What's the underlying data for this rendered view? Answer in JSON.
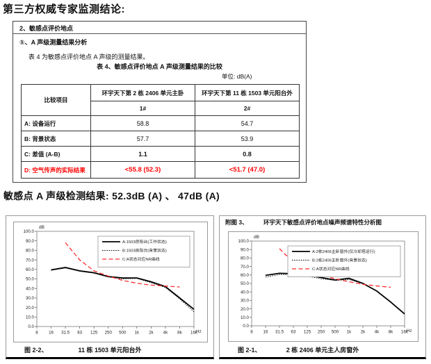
{
  "page": {
    "title": "第三方权威专家监测结论:"
  },
  "report_box": {
    "section": "2、敏感点评价地点",
    "subsection": "①、A 声级测量结果分析",
    "intro": "表 4 为敏感点评价地点 A 声级的测量结果。",
    "table_title": "表 4、敏感点评价地点 A 声级测量结果的比较",
    "unit_label": "单位: dB(A)",
    "table": {
      "corner_header": "比较项目",
      "locations": [
        "环宇天下第 2 栋 2406 单元主卧",
        "环宇天下第 11 栋 1503 单元阳台外"
      ],
      "ids": [
        "1#",
        "2#"
      ],
      "rows": [
        {
          "label": "A: 设备运行",
          "v1": "58.8",
          "v2": "54.7"
        },
        {
          "label": "B: 背景状态",
          "v1": "57.7",
          "v2": "53.9"
        },
        {
          "label": "C: 差值 (A-B)",
          "v1": "1.1",
          "v2": "0.8"
        },
        {
          "label": "D: 空气传声的实际结果",
          "v1": "<55.8 (52.3)",
          "v2": "<51.7 (47.0)"
        }
      ]
    }
  },
  "result_line": "敏感点 A 声级检测结果: 52.3dB (A) 、 47dB (A)",
  "colors": {
    "text_red": "#ff0000",
    "curve_red": "#ff2a2a",
    "line_black": "#000000"
  },
  "chart_data": [
    {
      "type": "line",
      "caption_id": "图 2-2、",
      "caption": "11 栋 1503 单元阳台外",
      "ylabel": "dB",
      "xlabel": "Hz",
      "ylim": [
        0,
        100
      ],
      "ytick_step": 10,
      "grid": false,
      "legend_position": "upper-right",
      "categories": [
        "8",
        "16",
        "31.5",
        "63",
        "125",
        "250",
        "500",
        "1k",
        "2k",
        "4k",
        "8k",
        "16k"
      ],
      "series": [
        {
          "name": "A:1503房阳台(工作状态)",
          "style": "solid",
          "color": "#000000",
          "values": [
            null,
            59.5,
            62,
            58.5,
            56.5,
            52.5,
            51,
            51,
            47,
            42,
            30,
            18
          ]
        },
        {
          "name": "B:1503房阳台(背景状态)",
          "style": "dotted",
          "color": "#000000",
          "values": [
            null,
            59,
            61.5,
            58,
            56,
            52,
            50,
            50.5,
            46,
            41,
            29,
            15.5
          ]
        },
        {
          "name": "C:A状态对应NR曲线",
          "style": "dashed",
          "color": "#ff2a2a",
          "values": [
            null,
            null,
            88,
            70,
            58.5,
            53,
            48.5,
            45.5,
            43.5,
            42.5,
            41.5,
            null
          ]
        }
      ]
    },
    {
      "type": "line",
      "header_id": "附图 3、",
      "header_title": "环宇天下敏感点评价地点噪声频谱特性分析图",
      "caption_id": "图 2-1、",
      "caption": "2 栋 2406 单元主人房窗外",
      "ylabel": "dB",
      "xlabel": "Hz",
      "ylim": [
        0,
        100
      ],
      "ytick_step": 10,
      "grid": false,
      "legend_position": "upper-right",
      "categories": [
        "8",
        "16",
        "31.5",
        "63",
        "125",
        "250",
        "500",
        "1k",
        "2k",
        "4k",
        "8k",
        "16k"
      ],
      "series": [
        {
          "name": "A:2栋2406主卧窗外(仅冷却塔运行)",
          "style": "solid",
          "color": "#000000",
          "values": [
            null,
            59.5,
            62,
            61.5,
            60,
            57,
            54,
            56,
            50,
            41,
            28,
            14
          ]
        },
        {
          "name": "B:2栋2406主卧窗外(背景状态)",
          "style": "dotted",
          "color": "#000000",
          "values": [
            null,
            57.5,
            60.5,
            60.5,
            58.5,
            55.5,
            53.5,
            54.5,
            50,
            41,
            28,
            14
          ]
        },
        {
          "name": "C:A状态对应NR曲线",
          "style": "dashed",
          "color": "#ff2a2a",
          "values": [
            null,
            null,
            91,
            75,
            66,
            60,
            55.5,
            52,
            49,
            47,
            45.5,
            null
          ]
        }
      ]
    }
  ]
}
